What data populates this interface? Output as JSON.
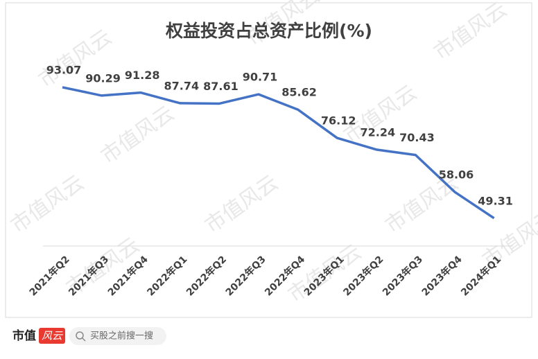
{
  "chart_data": {
    "type": "line",
    "title": "权益投资占总资产比例(%)",
    "categories": [
      "2021年Q2",
      "2021年Q3",
      "2021年Q4",
      "2022年Q1",
      "2022年Q2",
      "2022年Q3",
      "2022年Q4",
      "2023年Q1",
      "2023年Q2",
      "2023年Q3",
      "2023年Q4",
      "2024年Q1"
    ],
    "series": [
      {
        "color": "#4472c4",
        "values": [
          93.07,
          90.29,
          91.28,
          87.74,
          87.61,
          90.71,
          85.62,
          76.12,
          72.24,
          70.43,
          58.06,
          49.31
        ]
      }
    ],
    "ylim": [
      40,
      100
    ]
  },
  "watermark": "市值风云",
  "footer": {
    "brand": "市值",
    "logo": "风云",
    "search": "买股之前搜一搜"
  }
}
